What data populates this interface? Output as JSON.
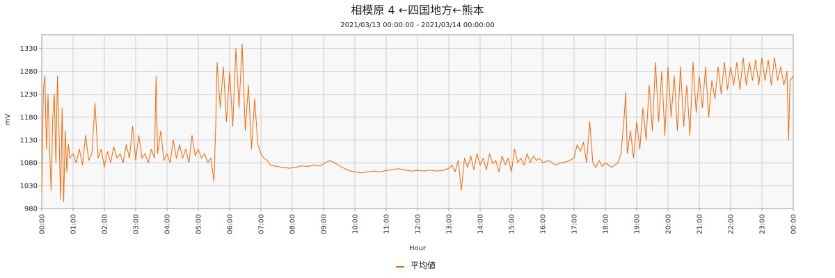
{
  "chart_data": {
    "type": "line",
    "title": "相模原 4 ←四国地方←熊本",
    "subtitle": "2021/03/13 00:00:00 - 2021/03/14 00:00:00",
    "xlabel": "Hour",
    "ylabel": "mV",
    "ylim": [
      980,
      1360
    ],
    "xlim": [
      0,
      24
    ],
    "grid": true,
    "legend_placement": "bottom-center",
    "y_ticks": [
      980,
      1030,
      1080,
      1130,
      1180,
      1230,
      1280,
      1330
    ],
    "y_tick_labels": [
      "980",
      "1030",
      "1080",
      "1130",
      "1180",
      "1230",
      "1280",
      "1330"
    ],
    "x_ticks": [
      0,
      1,
      2,
      3,
      4,
      5,
      6,
      7,
      8,
      9,
      10,
      11,
      12,
      13,
      14,
      15,
      16,
      17,
      18,
      19,
      20,
      21,
      22,
      23,
      24
    ],
    "x_tick_labels": [
      "00:00",
      "01:00",
      "02:00",
      "03:00",
      "04:00",
      "05:00",
      "06:00",
      "07:00",
      "08:00",
      "09:00",
      "10:00",
      "11:00",
      "12:00",
      "13:00",
      "14:00",
      "15:00",
      "16:00",
      "17:00",
      "18:00",
      "19:00",
      "20:00",
      "21:00",
      "22:00",
      "23:00",
      "00:00"
    ],
    "series": [
      {
        "name": "平均値",
        "color": "#ff6600",
        "points": [
          [
            0.0,
            1015
          ],
          [
            0.05,
            1240
          ],
          [
            0.1,
            1270
          ],
          [
            0.15,
            1110
          ],
          [
            0.2,
            1230
          ],
          [
            0.25,
            1110
          ],
          [
            0.3,
            1020
          ],
          [
            0.35,
            1180
          ],
          [
            0.4,
            1230
          ],
          [
            0.45,
            1080
          ],
          [
            0.5,
            1270
          ],
          [
            0.55,
            1150
          ],
          [
            0.6,
            1000
          ],
          [
            0.65,
            1200
          ],
          [
            0.7,
            995
          ],
          [
            0.75,
            1150
          ],
          [
            0.8,
            1060
          ],
          [
            0.85,
            1120
          ],
          [
            0.9,
            1090
          ],
          [
            1.0,
            1100
          ],
          [
            1.1,
            1080
          ],
          [
            1.2,
            1110
          ],
          [
            1.3,
            1075
          ],
          [
            1.4,
            1140
          ],
          [
            1.5,
            1085
          ],
          [
            1.6,
            1100
          ],
          [
            1.7,
            1210
          ],
          [
            1.8,
            1090
          ],
          [
            1.9,
            1110
          ],
          [
            2.0,
            1070
          ],
          [
            2.1,
            1105
          ],
          [
            2.2,
            1080
          ],
          [
            2.3,
            1115
          ],
          [
            2.4,
            1090
          ],
          [
            2.5,
            1100
          ],
          [
            2.6,
            1080
          ],
          [
            2.7,
            1120
          ],
          [
            2.8,
            1090
          ],
          [
            2.9,
            1160
          ],
          [
            3.0,
            1085
          ],
          [
            3.1,
            1140
          ],
          [
            3.2,
            1090
          ],
          [
            3.3,
            1100
          ],
          [
            3.4,
            1080
          ],
          [
            3.5,
            1110
          ],
          [
            3.6,
            1090
          ],
          [
            3.65,
            1270
          ],
          [
            3.7,
            1100
          ],
          [
            3.8,
            1150
          ],
          [
            3.9,
            1085
          ],
          [
            4.0,
            1100
          ],
          [
            4.1,
            1080
          ],
          [
            4.2,
            1130
          ],
          [
            4.3,
            1090
          ],
          [
            4.4,
            1120
          ],
          [
            4.5,
            1090
          ],
          [
            4.6,
            1110
          ],
          [
            4.7,
            1080
          ],
          [
            4.8,
            1140
          ],
          [
            4.9,
            1095
          ],
          [
            5.0,
            1110
          ],
          [
            5.1,
            1090
          ],
          [
            5.2,
            1100
          ],
          [
            5.3,
            1080
          ],
          [
            5.4,
            1090
          ],
          [
            5.5,
            1040
          ],
          [
            5.55,
            1150
          ],
          [
            5.6,
            1300
          ],
          [
            5.7,
            1200
          ],
          [
            5.8,
            1290
          ],
          [
            5.9,
            1170
          ],
          [
            6.0,
            1280
          ],
          [
            6.1,
            1160
          ],
          [
            6.2,
            1330
          ],
          [
            6.3,
            1200
          ],
          [
            6.4,
            1340
          ],
          [
            6.5,
            1150
          ],
          [
            6.6,
            1250
          ],
          [
            6.7,
            1110
          ],
          [
            6.8,
            1220
          ],
          [
            6.9,
            1120
          ],
          [
            7.0,
            1100
          ],
          [
            7.1,
            1090
          ],
          [
            7.2,
            1085
          ],
          [
            7.3,
            1075
          ],
          [
            7.5,
            1072
          ],
          [
            7.7,
            1070
          ],
          [
            7.9,
            1068
          ],
          [
            8.1,
            1070
          ],
          [
            8.3,
            1073
          ],
          [
            8.5,
            1072
          ],
          [
            8.7,
            1075
          ],
          [
            8.9,
            1073
          ],
          [
            9.0,
            1078
          ],
          [
            9.2,
            1085
          ],
          [
            9.4,
            1078
          ],
          [
            9.6,
            1070
          ],
          [
            9.8,
            1063
          ],
          [
            10.0,
            1060
          ],
          [
            10.2,
            1058
          ],
          [
            10.4,
            1060
          ],
          [
            10.6,
            1062
          ],
          [
            10.8,
            1060
          ],
          [
            11.0,
            1063
          ],
          [
            11.2,
            1065
          ],
          [
            11.4,
            1067
          ],
          [
            11.6,
            1064
          ],
          [
            11.8,
            1062
          ],
          [
            12.0,
            1063
          ],
          [
            12.2,
            1062
          ],
          [
            12.4,
            1064
          ],
          [
            12.6,
            1062
          ],
          [
            12.8,
            1063
          ],
          [
            13.0,
            1068
          ],
          [
            13.1,
            1075
          ],
          [
            13.2,
            1060
          ],
          [
            13.3,
            1085
          ],
          [
            13.4,
            1020
          ],
          [
            13.5,
            1090
          ],
          [
            13.6,
            1070
          ],
          [
            13.7,
            1095
          ],
          [
            13.8,
            1065
          ],
          [
            13.9,
            1100
          ],
          [
            14.0,
            1075
          ],
          [
            14.1,
            1090
          ],
          [
            14.2,
            1065
          ],
          [
            14.3,
            1100
          ],
          [
            14.4,
            1078
          ],
          [
            14.5,
            1085
          ],
          [
            14.6,
            1060
          ],
          [
            14.7,
            1095
          ],
          [
            14.8,
            1075
          ],
          [
            14.9,
            1090
          ],
          [
            15.0,
            1060
          ],
          [
            15.1,
            1110
          ],
          [
            15.2,
            1080
          ],
          [
            15.3,
            1090
          ],
          [
            15.4,
            1075
          ],
          [
            15.5,
            1100
          ],
          [
            15.6,
            1080
          ],
          [
            15.7,
            1095
          ],
          [
            15.8,
            1085
          ],
          [
            15.9,
            1090
          ],
          [
            16.0,
            1080
          ],
          [
            16.2,
            1085
          ],
          [
            16.4,
            1075
          ],
          [
            16.6,
            1080
          ],
          [
            16.8,
            1083
          ],
          [
            17.0,
            1090
          ],
          [
            17.1,
            1120
          ],
          [
            17.2,
            1105
          ],
          [
            17.3,
            1125
          ],
          [
            17.4,
            1080
          ],
          [
            17.5,
            1170
          ],
          [
            17.6,
            1080
          ],
          [
            17.7,
            1070
          ],
          [
            17.8,
            1085
          ],
          [
            17.9,
            1072
          ],
          [
            18.0,
            1080
          ],
          [
            18.2,
            1070
          ],
          [
            18.4,
            1080
          ],
          [
            18.5,
            1100
          ],
          [
            18.6,
            1180
          ],
          [
            18.65,
            1235
          ],
          [
            18.7,
            1100
          ],
          [
            18.8,
            1150
          ],
          [
            18.9,
            1090
          ],
          [
            19.0,
            1170
          ],
          [
            19.1,
            1110
          ],
          [
            19.2,
            1200
          ],
          [
            19.3,
            1130
          ],
          [
            19.4,
            1250
          ],
          [
            19.5,
            1150
          ],
          [
            19.6,
            1300
          ],
          [
            19.7,
            1170
          ],
          [
            19.8,
            1280
          ],
          [
            19.9,
            1140
          ],
          [
            20.0,
            1290
          ],
          [
            20.1,
            1180
          ],
          [
            20.2,
            1270
          ],
          [
            20.3,
            1150
          ],
          [
            20.4,
            1290
          ],
          [
            20.5,
            1160
          ],
          [
            20.6,
            1250
          ],
          [
            20.7,
            1140
          ],
          [
            20.8,
            1300
          ],
          [
            20.9,
            1190
          ],
          [
            21.0,
            1270
          ],
          [
            21.1,
            1200
          ],
          [
            21.2,
            1290
          ],
          [
            21.3,
            1180
          ],
          [
            21.4,
            1260
          ],
          [
            21.5,
            1220
          ],
          [
            21.6,
            1290
          ],
          [
            21.7,
            1230
          ],
          [
            21.8,
            1300
          ],
          [
            21.9,
            1240
          ],
          [
            22.0,
            1290
          ],
          [
            22.1,
            1250
          ],
          [
            22.2,
            1300
          ],
          [
            22.3,
            1240
          ],
          [
            22.4,
            1310
          ],
          [
            22.5,
            1250
          ],
          [
            22.6,
            1300
          ],
          [
            22.7,
            1260
          ],
          [
            22.8,
            1305
          ],
          [
            22.9,
            1250
          ],
          [
            23.0,
            1310
          ],
          [
            23.1,
            1260
          ],
          [
            23.2,
            1305
          ],
          [
            23.3,
            1250
          ],
          [
            23.4,
            1310
          ],
          [
            23.5,
            1260
          ],
          [
            23.6,
            1290
          ],
          [
            23.7,
            1250
          ],
          [
            23.8,
            1280
          ],
          [
            23.85,
            1130
          ],
          [
            23.9,
            1260
          ],
          [
            24.0,
            1270
          ]
        ]
      }
    ]
  }
}
